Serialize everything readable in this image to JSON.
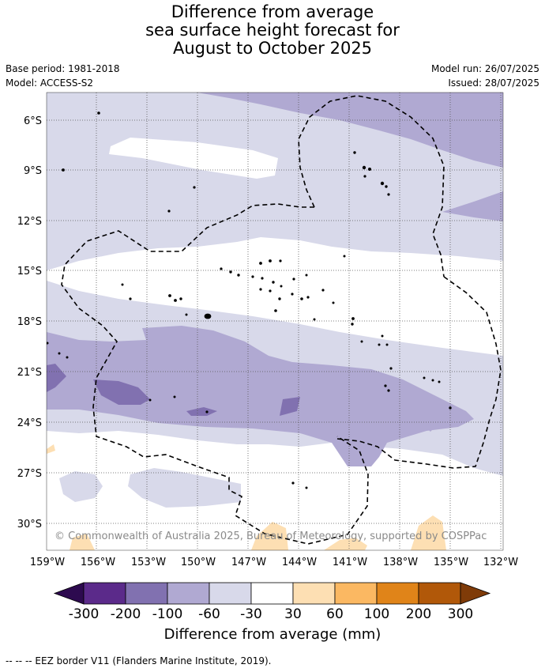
{
  "title": {
    "line1": "Difference from average",
    "line2": "sea surface height forecast for",
    "line3": "August to October 2025"
  },
  "meta": {
    "base_period": "Base period: 1981-2018",
    "model": "Model: ACCESS-S2",
    "model_run": "Model run: 26/07/2025",
    "issued": "Issued: 28/07/2025"
  },
  "map": {
    "lat_labels": [
      "6°S",
      "9°S",
      "12°S",
      "15°S",
      "18°S",
      "21°S",
      "24°S",
      "27°S",
      "30°S"
    ],
    "lon_labels": [
      "159°W",
      "156°W",
      "153°W",
      "150°W",
      "147°W",
      "144°W",
      "141°W",
      "138°W",
      "135°W",
      "132°W"
    ],
    "copyright": "© Commonwealth of Australia 2025, Bureau of Meteorology, supported by COSPPac",
    "colors": {
      "c_-200": "#5b2a8a",
      "c_-100": "#8171b0",
      "c_-60": "#b0a9d2",
      "c_-30": "#d8d9ea",
      "c_0": "#ffffff",
      "c_30": "#fddfb3",
      "c_60": "#fbb862",
      "c_100": "#e08419",
      "c_200": "#b15809",
      "c_300": "#7f3b08",
      "c_-300": "#2d0a4f"
    }
  },
  "colorbar": {
    "labels": [
      "-300",
      "-200",
      "-100",
      "-60",
      "-30",
      "30",
      "60",
      "100",
      "200",
      "300"
    ],
    "title": "Difference from average (mm)"
  },
  "footer": "--  --  -- EEZ border V11 (Flanders Marine Institute, 2019)."
}
